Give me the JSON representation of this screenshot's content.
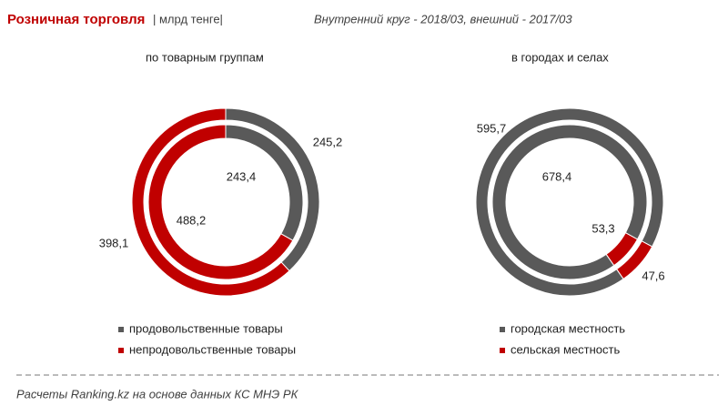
{
  "header": {
    "title": "Розничная торговля",
    "unit": "| млрд тенге|",
    "subtitle": "Внутренний круг - 2018/03, внешний - 2017/03"
  },
  "chart_data": [
    {
      "type": "donut",
      "title": "по товарным группам",
      "categories": [
        "продовольственные товары",
        "непродовольственные товары"
      ],
      "colors": [
        "#595959",
        "#c00000"
      ],
      "series": [
        {
          "values": [
            243.4,
            488.2
          ],
          "value_labels": [
            "243,4",
            "488,2"
          ]
        },
        {
          "values": [
            245.2,
            398.1
          ],
          "value_labels": [
            "245,2",
            "398,1"
          ]
        }
      ]
    },
    {
      "type": "donut",
      "title": "в городах и селах",
      "categories": [
        "городская местность",
        "сельская местность"
      ],
      "colors": [
        "#595959",
        "#c00000"
      ],
      "series": [
        {
          "values": [
            678.4,
            53.3
          ],
          "value_labels": [
            "678,4",
            "53,3"
          ]
        },
        {
          "values": [
            595.7,
            47.6
          ],
          "value_labels": [
            "595,7",
            "47,6"
          ]
        }
      ]
    }
  ],
  "footer": {
    "source": "Расчеты Ranking.kz на основе данных  КС МНЭ РК"
  }
}
